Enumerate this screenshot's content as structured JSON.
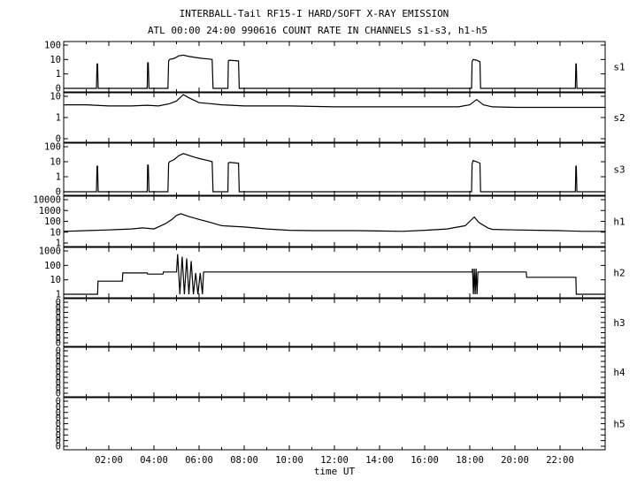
{
  "chart_data": {
    "type": "line",
    "title": "INTERBALL-Tail RF15-I HARD/SOFT X-RAY EMISSION",
    "subtitle": "ATL 00:00 24:00 990616  COUNT RATE IN CHANNELS s1-s3, h1-h5",
    "xlabel": "time UT",
    "xlim": [
      0,
      24
    ],
    "x_ticks": [
      "02:00",
      "04:00",
      "06:00",
      "08:00",
      "10:00",
      "12:00",
      "14:00",
      "16:00",
      "18:00",
      "20:00",
      "22:00"
    ],
    "grid": false,
    "panels": [
      {
        "name": "s1",
        "yscale": "log",
        "y_tick_labels": [
          "100",
          "10",
          "1",
          "0"
        ],
        "series": [
          {
            "x": [
              0,
              1.45,
              1.48,
              1.5,
              1.53,
              3.7,
              3.72,
              3.75,
              3.78,
              4.62,
              4.65,
              4.7,
              4.9,
              5.1,
              5.3,
              5.5,
              5.8,
              6.1,
              6.4,
              6.58,
              6.62,
              7.28,
              7.3,
              7.35,
              7.7,
              7.75,
              7.78,
              18.08,
              18.1,
              18.15,
              18.3,
              18.45,
              18.48,
              22.68,
              22.7,
              22.72,
              22.75,
              24
            ],
            "y": [
              0,
              0,
              5,
              5,
              0,
              0,
              6,
              6,
              0,
              0,
              8,
              10,
              12,
              18,
              20,
              17,
              14,
              12,
              11,
              10,
              0,
              0,
              8,
              9,
              8,
              8,
              0,
              0,
              7,
              10,
              9,
              7,
              0,
              0,
              5,
              5,
              0,
              0
            ]
          }
        ]
      },
      {
        "name": "s2",
        "yscale": "log",
        "y_tick_labels": [
          "10",
          "1",
          "0"
        ],
        "series": [
          {
            "x": [
              0,
              1,
              2,
              3,
              3.7,
              4.2,
              4.7,
              5.0,
              5.3,
              5.6,
              6.0,
              6.5,
              7,
              8,
              10,
              12,
              14,
              16,
              17.5,
              18.0,
              18.3,
              18.6,
              19,
              20,
              21,
              22,
              22.7,
              24
            ],
            "y": [
              4,
              4,
              3.5,
              3.5,
              3.8,
              3.5,
              4.5,
              6,
              12,
              8,
              5,
              4.5,
              4,
              3.5,
              3.5,
              3.2,
              3.2,
              3.2,
              3.2,
              4,
              7,
              4,
              3.2,
              3,
              3,
              3,
              3,
              3
            ]
          }
        ]
      },
      {
        "name": "s3",
        "yscale": "log",
        "y_tick_labels": [
          "100",
          "10",
          "1",
          "0"
        ],
        "series": [
          {
            "x": [
              0,
              1.45,
              1.48,
              1.5,
              1.53,
              3.7,
              3.72,
              3.75,
              3.78,
              4.62,
              4.65,
              4.7,
              4.9,
              5.1,
              5.3,
              5.5,
              5.8,
              6.1,
              6.4,
              6.58,
              6.62,
              7.28,
              7.3,
              7.35,
              7.7,
              7.75,
              7.78,
              18.08,
              18.1,
              18.15,
              18.3,
              18.45,
              18.48,
              22.68,
              22.7,
              22.72,
              22.75,
              24
            ],
            "y": [
              0,
              0,
              5,
              5,
              0,
              0,
              6,
              6,
              0,
              0,
              8,
              10,
              14,
              25,
              35,
              28,
              20,
              15,
              12,
              10,
              0,
              0,
              8,
              9,
              8,
              8,
              0,
              0,
              7,
              12,
              10,
              8,
              0,
              0,
              5,
              5,
              0,
              0
            ]
          }
        ]
      },
      {
        "name": "h1",
        "yscale": "log",
        "y_tick_labels": [
          "10000",
          "1000",
          "100",
          "10",
          "1"
        ],
        "series": [
          {
            "x": [
              0,
              1,
              2,
              3,
              3.5,
              4.0,
              4.5,
              4.8,
              5.0,
              5.2,
              5.5,
              6,
              6.5,
              7,
              8,
              9,
              10,
              11,
              12,
              13,
              14,
              15,
              16,
              17,
              17.8,
              18.2,
              18.4,
              18.8,
              19,
              20,
              21,
              22,
              23,
              24
            ],
            "y": [
              12,
              14,
              16,
              20,
              25,
              20,
              60,
              150,
              350,
              500,
              300,
              150,
              80,
              40,
              30,
              20,
              15,
              14,
              14,
              14,
              13,
              12,
              15,
              20,
              40,
              250,
              80,
              25,
              18,
              16,
              15,
              14,
              12,
              12
            ]
          }
        ]
      },
      {
        "name": "h2",
        "yscale": "log",
        "y_tick_labels": [
          "1000",
          "100",
          "10",
          "1"
        ],
        "series": [
          {
            "x": [
              0,
              1.5,
              1.52,
              2.6,
              2.62,
              3.7,
              3.72,
              4.4,
              4.42,
              5.0,
              5.05,
              5.15,
              5.25,
              5.35,
              5.45,
              5.55,
              5.65,
              5.75,
              5.85,
              5.95,
              6.05,
              6.15,
              6.2,
              18.1,
              18.12,
              18.16,
              18.2,
              18.24,
              18.28,
              18.32,
              18.36,
              18.4,
              20.5,
              20.52,
              22.7,
              22.72,
              24
            ],
            "y": [
              0,
              0,
              8,
              8,
              30,
              30,
              25,
              25,
              35,
              35,
              600,
              1,
              400,
              1,
              300,
              1,
              200,
              1,
              30,
              1,
              30,
              1,
              35,
              35,
              60,
              1,
              60,
              1,
              60,
              1,
              35,
              35,
              35,
              15,
              15,
              0,
              0
            ]
          }
        ]
      },
      {
        "name": "h3",
        "yscale": "log",
        "y_tick_labels": [
          "0",
          "0",
          "0",
          "0",
          "0",
          "0",
          "0",
          "0",
          "0"
        ],
        "series": []
      },
      {
        "name": "h4",
        "yscale": "log",
        "y_tick_labels": [
          "0",
          "0",
          "0",
          "0",
          "0",
          "0",
          "0",
          "0",
          "0"
        ],
        "series": []
      },
      {
        "name": "h5",
        "yscale": "log",
        "y_tick_labels": [
          "0",
          "0",
          "0",
          "0",
          "0",
          "0",
          "0",
          "0",
          "0"
        ],
        "series": []
      }
    ]
  }
}
